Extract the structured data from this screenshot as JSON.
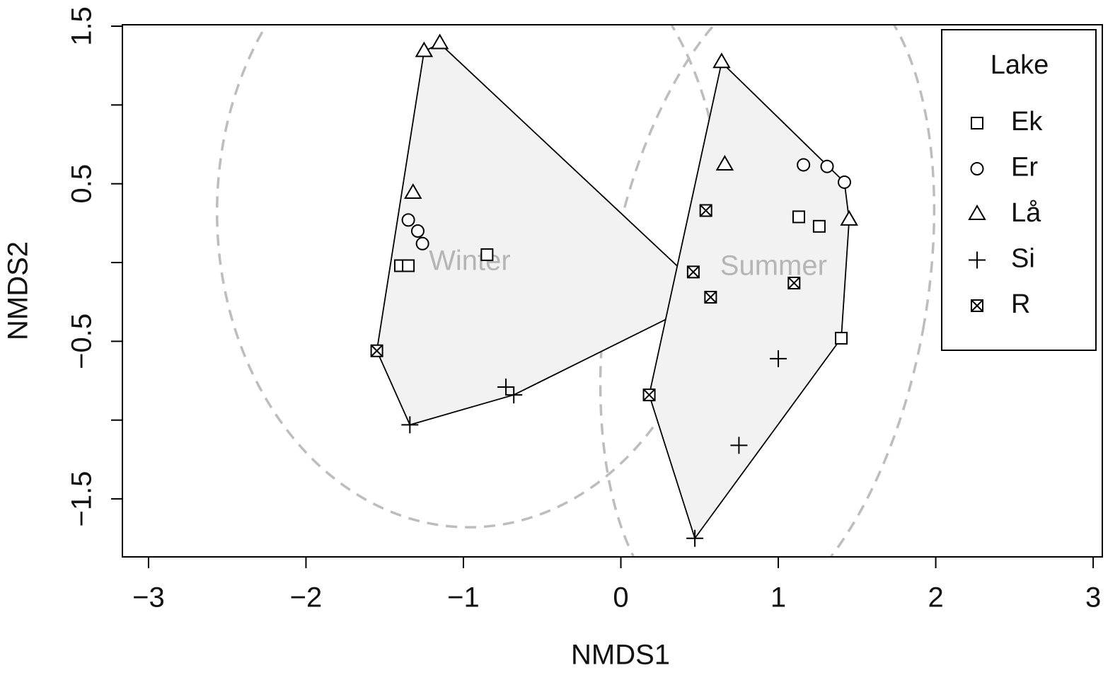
{
  "chart_data": {
    "type": "scatter",
    "xlabel": "NMDS1",
    "ylabel": "NMDS2",
    "xlim": [
      -3.166,
      3.058
    ],
    "ylim": [
      -1.868,
      1.509
    ],
    "xticks": [
      {
        "value": -3,
        "label": "−3"
      },
      {
        "value": -2,
        "label": "−2"
      },
      {
        "value": -1,
        "label": "−1"
      },
      0,
      1,
      2,
      3
    ],
    "yticks": [
      {
        "value": -1.5,
        "label": "−1.5"
      },
      {
        "value": -1,
        "label": null
      },
      {
        "value": -0.5,
        "label": "−0.5"
      },
      {
        "value": 0,
        "label": null
      },
      0.5,
      {
        "value": 1,
        "label": null
      },
      1.5
    ],
    "legend": {
      "title": "Lake",
      "position": "upper right"
    },
    "series": [
      {
        "name": "Ek",
        "marker": "square",
        "color": "#000000",
        "x": [
          -1.4,
          -1.35,
          -0.85,
          1.13,
          1.26,
          1.4
        ],
        "y": [
          -0.02,
          -0.02,
          0.05,
          0.29,
          0.23,
          -0.48
        ]
      },
      {
        "name": "Er",
        "marker": "circle",
        "color": "#000000",
        "x": [
          -1.35,
          -1.29,
          -1.26,
          1.16,
          1.31,
          1.42
        ],
        "y": [
          0.27,
          0.2,
          0.12,
          0.62,
          0.61,
          0.51
        ]
      },
      {
        "name": "Lå",
        "marker": "triangle",
        "color": "#000000",
        "x": [
          -1.25,
          -1.15,
          -1.32,
          0.64,
          0.66,
          1.45
        ],
        "y": [
          1.34,
          1.39,
          0.44,
          1.27,
          0.62,
          0.27
        ]
      },
      {
        "name": "Si",
        "marker": "plus",
        "color": "#000000",
        "x": [
          -1.34,
          -0.73,
          -0.68,
          1.0,
          0.75,
          0.47
        ],
        "y": [
          -1.03,
          -0.79,
          -0.84,
          -0.61,
          -1.16,
          -1.75
        ]
      },
      {
        "name": "R",
        "marker": "boxcross",
        "color": "#000000",
        "x": [
          -1.55,
          0.57,
          0.46,
          0.54,
          1.1,
          0.18
        ],
        "y": [
          -0.56,
          -0.22,
          -0.06,
          0.33,
          -0.13,
          -0.84
        ]
      }
    ],
    "hulls": [
      {
        "label": "Winter",
        "color": "#f2f2f2",
        "x": [
          -1.15,
          0.57,
          -0.68,
          -1.34,
          -1.55,
          -1.25
        ],
        "y": [
          1.39,
          -0.22,
          -0.84,
          -1.03,
          -0.56,
          1.34
        ]
      },
      {
        "label": "Summer",
        "color": "#f2f2f2",
        "x": [
          0.64,
          1.42,
          1.45,
          1.4,
          0.47,
          0.18
        ],
        "y": [
          1.27,
          0.51,
          0.27,
          -0.48,
          -1.75,
          -0.84
        ]
      }
    ],
    "ellipses": [
      {
        "label": "Winter",
        "cx": -0.965,
        "cy": 0.32,
        "rx": 1.6,
        "ry": 2.0,
        "angle": 0,
        "label_x": -0.96,
        "label_y": 0.0
      },
      {
        "label": "Summer",
        "cx": 0.93,
        "cy": -0.22,
        "rx": 1.01,
        "ry": 2.11,
        "angle": 10,
        "label_x": 0.97,
        "label_y": -0.03
      }
    ]
  }
}
